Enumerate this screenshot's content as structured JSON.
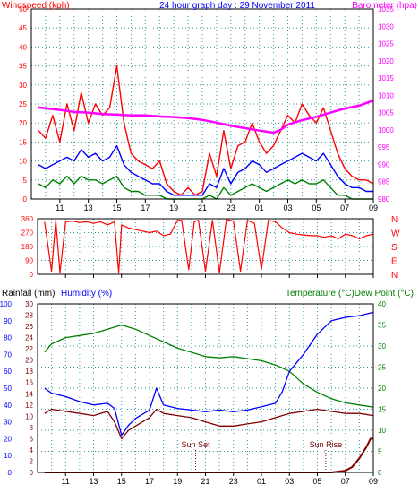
{
  "colors": {
    "wind_speed": "#ff0000",
    "wind_avg": "#0000ff",
    "wind_low": "#008000",
    "barometer": "#ff00ff",
    "direction": "#ff0000",
    "humidity": "#0000ff",
    "temperature": "#008000",
    "dewpoint": "#800000",
    "rainfall": "#800000",
    "grid": "#008080",
    "title": "#0000ff"
  },
  "chart_data": [
    {
      "type": "line",
      "title": "24 hour graph day : 29 November 2011",
      "ylabel_left": "Windspeed (kph)",
      "ylabel_right": "Barometer (hpa)",
      "x_tick_labels": [
        "11",
        "13",
        "15",
        "17",
        "19",
        "21",
        "23",
        "01",
        "03",
        "05",
        "07",
        "09"
      ],
      "y_left_ticks": [
        "0",
        "5",
        "10",
        "15",
        "20",
        "25",
        "30",
        "35",
        "40",
        "45",
        "50"
      ],
      "y_right_ticks": [
        "980",
        "985",
        "990",
        "995",
        "1000",
        "1005",
        "1010",
        "1015",
        "1020",
        "1025",
        "1030",
        "1035"
      ],
      "ylim_left": [
        0,
        50
      ],
      "ylim_right": [
        980,
        1035
      ],
      "grid": true,
      "series": [
        {
          "name": "Windspeed (kph)",
          "axis": "left",
          "x": [
            9.5,
            10,
            10.5,
            11,
            11.5,
            12,
            12.5,
            13,
            13.5,
            14,
            14.5,
            15,
            15.5,
            16,
            16.5,
            17,
            17.5,
            18,
            18.5,
            19,
            19.5,
            20,
            20.5,
            21,
            21.5,
            22,
            22.5,
            23,
            23.5,
            24,
            24.5,
            25,
            25.5,
            26,
            26.5,
            27,
            27.5,
            28,
            28.5,
            29,
            29.5,
            30,
            30.5,
            31,
            31.5,
            32,
            32.5,
            33
          ],
          "values": [
            18,
            16,
            22,
            15,
            25,
            18,
            28,
            20,
            25,
            22,
            24,
            35,
            20,
            12,
            10,
            9,
            8,
            10,
            4,
            2,
            1,
            3,
            1,
            2,
            12,
            6,
            18,
            8,
            14,
            15,
            20,
            15,
            12,
            14,
            18,
            22,
            20,
            25,
            22,
            20,
            24,
            18,
            12,
            8,
            6,
            5,
            5,
            4
          ]
        },
        {
          "name": "Windspeed avg",
          "axis": "left",
          "x": [
            9.5,
            10,
            10.5,
            11,
            11.5,
            12,
            12.5,
            13,
            13.5,
            14,
            14.5,
            15,
            15.5,
            16,
            16.5,
            17,
            17.5,
            18,
            18.5,
            19,
            19.5,
            20,
            20.5,
            21,
            21.5,
            22,
            22.5,
            23,
            23.5,
            24,
            24.5,
            25,
            25.5,
            26,
            26.5,
            27,
            27.5,
            28,
            28.5,
            29,
            29.5,
            30,
            30.5,
            31,
            31.5,
            32,
            32.5,
            33
          ],
          "values": [
            9,
            8,
            9,
            10,
            11,
            10,
            13,
            11,
            12,
            10,
            11,
            14,
            9,
            7,
            6,
            5,
            4,
            4,
            2,
            1,
            1,
            1,
            1,
            1,
            4,
            3,
            8,
            4,
            7,
            8,
            10,
            9,
            7,
            8,
            9,
            10,
            11,
            12,
            11,
            10,
            12,
            9,
            6,
            4,
            3,
            3,
            2,
            2
          ]
        },
        {
          "name": "Windspeed low",
          "axis": "left",
          "x": [
            9.5,
            10,
            10.5,
            11,
            11.5,
            12,
            12.5,
            13,
            13.5,
            14,
            14.5,
            15,
            15.5,
            16,
            16.5,
            17,
            17.5,
            18,
            18.5,
            19,
            19.5,
            20,
            20.5,
            21,
            21.5,
            22,
            22.5,
            23,
            23.5,
            24,
            24.5,
            25,
            25.5,
            26,
            26.5,
            27,
            27.5,
            28,
            28.5,
            29,
            29.5,
            30,
            30.5,
            31,
            31.5,
            32,
            32.5,
            33
          ],
          "values": [
            4,
            3,
            5,
            4,
            6,
            4,
            6,
            5,
            5,
            4,
            5,
            6,
            3,
            2,
            2,
            1,
            1,
            1,
            0,
            0,
            0,
            0,
            0,
            0,
            1,
            0,
            3,
            1,
            2,
            3,
            4,
            3,
            2,
            3,
            4,
            5,
            4,
            5,
            4,
            4,
            5,
            3,
            1,
            1,
            0,
            0,
            0,
            0
          ]
        },
        {
          "name": "Barometer (hpa)",
          "axis": "right",
          "x": [
            9.5,
            11,
            12,
            13,
            14,
            15,
            16,
            17,
            18,
            19,
            20,
            21,
            22,
            23,
            24,
            25,
            26,
            26.5,
            27,
            28,
            29,
            30,
            31,
            32,
            33
          ],
          "values": [
            1006.5,
            1005.8,
            1005.2,
            1005,
            1004.6,
            1004.4,
            1004.2,
            1004.2,
            1003.9,
            1003.7,
            1003.4,
            1002.9,
            1002.1,
            1001.2,
            1000.5,
            999.8,
            999.2,
            1000.0,
            1001.5,
            1002.8,
            1003.8,
            1005.0,
            1006.2,
            1007.0,
            1008.5
          ]
        }
      ]
    },
    {
      "type": "scatter",
      "ylabel_right_ticks": [
        "N",
        "W",
        "S",
        "E",
        "N"
      ],
      "x_tick_labels": [
        "11",
        "13",
        "15",
        "17",
        "19",
        "21",
        "23",
        "01",
        "03",
        "05",
        "07",
        "09"
      ],
      "y_left_ticks": [
        "0",
        "90",
        "180",
        "270",
        "360"
      ],
      "ylim": [
        0,
        360
      ],
      "grid": true,
      "series": [
        {
          "name": "Wind direction",
          "x": [
            9.5,
            10,
            10.3,
            10.6,
            11,
            11.5,
            12,
            12.5,
            13,
            13.5,
            14,
            14.5,
            14.8,
            15,
            15.5,
            16,
            16.5,
            17,
            17.5,
            18,
            18.5,
            19,
            19.3,
            19.8,
            20.2,
            20.5,
            21,
            21.5,
            22,
            22.5,
            23,
            23.5,
            24,
            24.5,
            25,
            25.5,
            26,
            26.5,
            27,
            27.5,
            28,
            28.5,
            29,
            29.5,
            30,
            30.5,
            31,
            31.5,
            32,
            32.5,
            33
          ],
          "values": [
            340,
            20,
            350,
            10,
            340,
            345,
            335,
            340,
            330,
            340,
            320,
            340,
            10,
            320,
            300,
            290,
            280,
            270,
            280,
            250,
            260,
            350,
            350,
            30,
            340,
            350,
            20,
            350,
            10,
            355,
            345,
            20,
            350,
            330,
            30,
            350,
            340,
            300,
            270,
            260,
            255,
            250,
            250,
            240,
            250,
            230,
            260,
            250,
            230,
            250,
            260
          ]
        }
      ]
    },
    {
      "type": "line",
      "ylabel_left_1": "Rainfall (mm)",
      "ylabel_left_2": "Humidity (%)",
      "ylabel_right": "Temperature (°C)Dew Point (°C)",
      "x_tick_labels": [
        "11",
        "13",
        "15",
        "17",
        "19",
        "21",
        "23",
        "01",
        "03",
        "05",
        "07",
        "09"
      ],
      "y_humidity_ticks": [
        "0",
        "10",
        "20",
        "30",
        "40",
        "50",
        "60",
        "70",
        "80",
        "90",
        "100"
      ],
      "y_rain_ticks": [
        "0",
        "2",
        "4",
        "6",
        "8",
        "10",
        "12",
        "14",
        "16",
        "18",
        "20",
        "22",
        "24",
        "26",
        "28",
        "30"
      ],
      "y_temp_ticks": [
        "0",
        "5",
        "10",
        "15",
        "20",
        "25",
        "30",
        "35",
        "40"
      ],
      "ylim_humidity": [
        0,
        100
      ],
      "ylim_rain": [
        0,
        30
      ],
      "ylim_temp": [
        0,
        40
      ],
      "grid": true,
      "annotations": [
        "Sun Set",
        "Sun Rise"
      ],
      "series": [
        {
          "name": "Temperature (°C)",
          "axis": "temp",
          "x": [
            9.5,
            10,
            11,
            12,
            13,
            14,
            15,
            16,
            17,
            18,
            19,
            20,
            21,
            22,
            23,
            24,
            25,
            26,
            27,
            28,
            29,
            30,
            31,
            32,
            33
          ],
          "values": [
            28.5,
            30.5,
            32,
            32.5,
            33,
            34,
            35,
            34,
            32.5,
            31,
            29.5,
            28.5,
            27.5,
            27.2,
            27.5,
            27,
            26.5,
            25.5,
            24,
            21,
            19,
            17.5,
            16.5,
            16,
            15.5
          ]
        },
        {
          "name": "Humidity (%)",
          "axis": "humidity",
          "x": [
            9.5,
            10,
            11,
            12,
            13,
            14,
            14.5,
            15,
            15.5,
            16,
            17,
            17.5,
            18,
            19,
            20,
            21,
            22,
            23,
            24,
            25,
            26,
            26.5,
            27,
            28,
            29,
            30,
            31,
            32,
            32.5,
            33
          ],
          "values": [
            50,
            47,
            45,
            42,
            40,
            41,
            38,
            22,
            28,
            32,
            37,
            50,
            40,
            38,
            37,
            36,
            37,
            36,
            37,
            39,
            41,
            48,
            60,
            70,
            82,
            90,
            92,
            93,
            94,
            95
          ]
        },
        {
          "name": "Dew Point (°C)",
          "axis": "temp",
          "x": [
            9.5,
            10,
            11,
            12,
            13,
            14,
            14.5,
            15,
            15.5,
            16,
            17,
            17.5,
            18,
            19,
            20,
            21,
            22,
            23,
            24,
            25,
            26,
            27,
            28,
            29,
            30,
            31,
            32,
            33
          ],
          "values": [
            14,
            15,
            14.5,
            14,
            13.5,
            14.5,
            12,
            8,
            10,
            11,
            13,
            15,
            14,
            13.5,
            13,
            12,
            11,
            11,
            11.5,
            12,
            13,
            14,
            14.5,
            15,
            14.5,
            14,
            14,
            13.5
          ]
        },
        {
          "name": "Rainfall (mm)",
          "axis": "rain",
          "x": [
            9.5,
            30,
            31,
            31.5,
            32,
            32.5,
            32.8,
            33
          ],
          "values": [
            0,
            0,
            0.3,
            1,
            2.5,
            4.5,
            6,
            6
          ]
        }
      ]
    }
  ]
}
